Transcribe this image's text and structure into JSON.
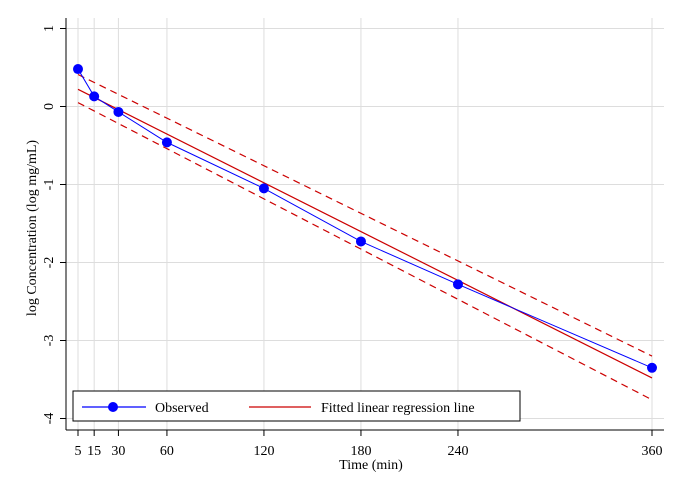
{
  "chart_data": {
    "type": "line",
    "xlabel": "Time (min)",
    "ylabel": "log Concentration (log mg/mL)",
    "xlim": [
      5,
      360
    ],
    "ylim": [
      -4,
      1
    ],
    "x_ticks": [
      5,
      15,
      30,
      60,
      120,
      180,
      240,
      360
    ],
    "x_tick_labels": [
      "5",
      "15",
      "30",
      "60",
      "120",
      "180",
      "240",
      "360"
    ],
    "y_ticks": [
      -4,
      -3,
      -2,
      -1,
      0,
      1
    ],
    "y_tick_labels": [
      "-4",
      "-3",
      "-2",
      "-1",
      "0",
      "1"
    ],
    "grid": true,
    "legend_position": "bottom-left",
    "series": [
      {
        "name": "Observed",
        "color": "#0000ff",
        "marker": "circle",
        "x": [
          5,
          15,
          30,
          60,
          120,
          180,
          240,
          360
        ],
        "y": [
          0.48,
          0.13,
          -0.07,
          -0.46,
          -1.05,
          -1.73,
          -2.28,
          -3.35
        ]
      },
      {
        "name": "Fitted linear regression line",
        "color": "#cc0000",
        "x": [
          5,
          360
        ],
        "y": [
          0.22,
          -3.48
        ]
      }
    ],
    "confidence_band": {
      "color": "#cc0000",
      "upper": {
        "x": [
          5,
          360
        ],
        "y": [
          0.41,
          -3.2
        ]
      },
      "lower": {
        "x": [
          5,
          360
        ],
        "y": [
          0.05,
          -3.76
        ]
      }
    }
  }
}
